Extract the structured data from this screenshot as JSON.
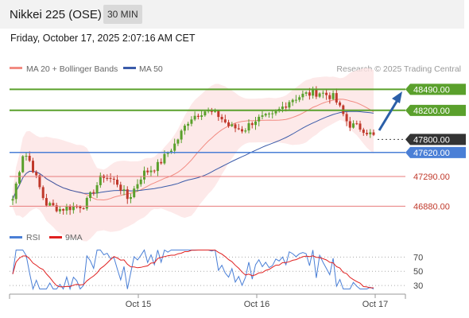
{
  "header": {
    "title": "Nikkei 225 (OSE)",
    "interval": "30 MIN"
  },
  "datetime": "Friday, October 17, 2025 2:07:16 AM CET",
  "legend": {
    "ma20_label": "MA 20 + Bollinger Bands",
    "ma50_label": "MA 50",
    "credit": "Research © 2025 Trading Central",
    "rsi_label": "RSI",
    "rsi_ma_label": "9MA"
  },
  "colors": {
    "resistance": "#5aa02c",
    "current": "#333333",
    "support_blue": "#4a7fd6",
    "support_red": "#e87b7b",
    "candle_up": "#5aa02c",
    "candle_down": "#c0392b",
    "bollinger_fill": "#fde3e3",
    "ma20": "#f28b82",
    "ma50": "#3b5ba9",
    "rsi": "#4a7fd6",
    "rsi_ma": "#e02020",
    "arrow": "#2b5fa8"
  },
  "chart_data": [
    {
      "type": "candlestick",
      "x_ticks": [
        "Oct 15",
        "Oct 16",
        "Oct 17"
      ],
      "levels": [
        {
          "value": 48490.0,
          "label": "48490.00",
          "kind": "resistance"
        },
        {
          "value": 48200.0,
          "label": "48200.00",
          "kind": "resistance"
        },
        {
          "value": 47800.0,
          "label": "47800.00",
          "kind": "current"
        },
        {
          "value": 47620.0,
          "label": "47620.00",
          "kind": "pivot"
        },
        {
          "value": 47290.0,
          "label": "47290.00",
          "kind": "support"
        },
        {
          "value": 46880.0,
          "label": "46880.00",
          "kind": "support"
        }
      ],
      "series": [
        {
          "name": "MA 20 + Bollinger Bands"
        },
        {
          "name": "MA 50"
        }
      ],
      "ylim": [
        46600,
        48680
      ]
    },
    {
      "type": "line",
      "series": [
        {
          "name": "RSI"
        },
        {
          "name": "9MA"
        }
      ],
      "y_ticks": [
        70,
        50,
        30
      ],
      "ylim": [
        20,
        85
      ]
    }
  ]
}
